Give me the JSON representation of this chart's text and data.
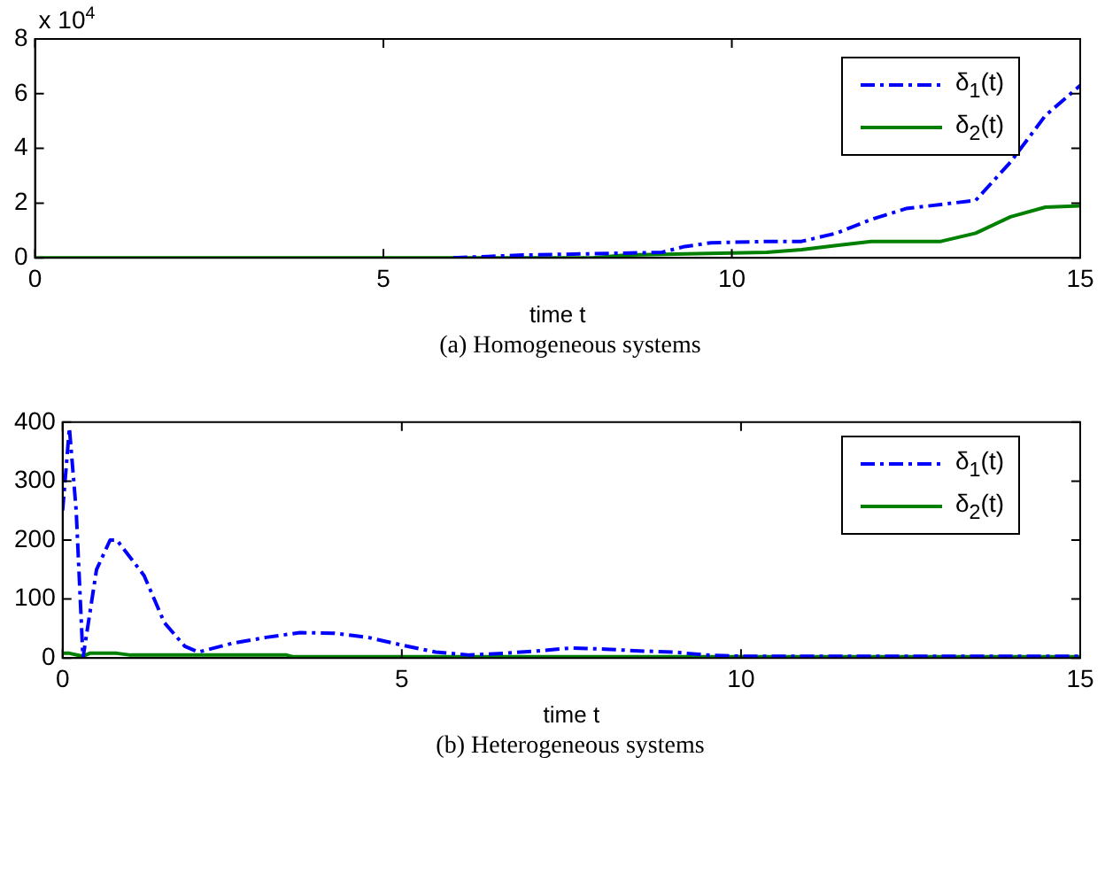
{
  "chart_data": [
    {
      "type": "line",
      "title": "(a) Homogeneous systems",
      "xlabel": "time t",
      "annotations": [
        "x 10$^{4}$"
      ],
      "xlim": [
        0,
        15
      ],
      "xticks": [
        0,
        5,
        10,
        15
      ],
      "ylim": [
        0,
        8
      ],
      "yticks": [
        0,
        2,
        4,
        6,
        8
      ],
      "grid": false,
      "legend": "top right",
      "marker": "none",
      "series": [
        {
          "name": "δ$_{1}$(t)",
          "color": "#0000ff",
          "line_style": "dashdot",
          "x": [
            6,
            6.5,
            7,
            8,
            9,
            9.3,
            9.7,
            10.5,
            11,
            11.5,
            12,
            12.5,
            13,
            13.5,
            14,
            14.5,
            15
          ],
          "values": [
            0,
            0.05,
            0.1,
            0.15,
            0.2,
            0.4,
            0.55,
            0.6,
            0.6,
            0.9,
            1.4,
            1.8,
            1.95,
            2.1,
            3.5,
            5.2,
            6.3
          ]
        },
        {
          "name": "δ$_{2}$(t)",
          "color": "#008000",
          "line_style": "solid",
          "x": [
            0,
            8,
            8.5,
            10.5,
            11,
            11.5,
            12,
            13,
            13.5,
            14,
            14.5,
            15
          ],
          "values": [
            0,
            0,
            0.1,
            0.2,
            0.3,
            0.45,
            0.6,
            0.6,
            0.9,
            1.5,
            1.85,
            1.9
          ]
        }
      ]
    },
    {
      "type": "line",
      "title": "(b) Heterogeneous systems",
      "xlabel": "time t",
      "xlim": [
        0,
        15
      ],
      "xticks": [
        0,
        5,
        10,
        15
      ],
      "ylim": [
        0,
        400
      ],
      "yticks": [
        0,
        100,
        200,
        300,
        400
      ],
      "grid": false,
      "legend": "top right",
      "marker": "none",
      "series": [
        {
          "name": "δ$_{1}$(t)",
          "color": "#0000ff",
          "line_style": "dashdot",
          "x": [
            0,
            0.1,
            0.2,
            0.3,
            0.5,
            0.7,
            0.8,
            1,
            1.2,
            1.5,
            1.8,
            2,
            2.5,
            3,
            3.5,
            4,
            4.5,
            5,
            5.5,
            6,
            6.5,
            7,
            7.5,
            8,
            8.5,
            9,
            9.5,
            10,
            15
          ],
          "values": [
            250,
            390,
            250,
            0,
            150,
            200,
            200,
            170,
            140,
            60,
            20,
            10,
            25,
            35,
            43,
            42,
            35,
            22,
            10,
            5,
            8,
            12,
            17,
            15,
            12,
            10,
            5,
            3,
            3
          ]
        },
        {
          "name": "δ$_{2}$(t)",
          "color": "#008000",
          "line_style": "solid",
          "x": [
            0,
            0.1,
            0.3,
            0.4,
            0.8,
            1,
            3.3,
            3.4,
            15
          ],
          "values": [
            8,
            8,
            3,
            8,
            8,
            5,
            5,
            2,
            2
          ]
        }
      ]
    }
  ]
}
